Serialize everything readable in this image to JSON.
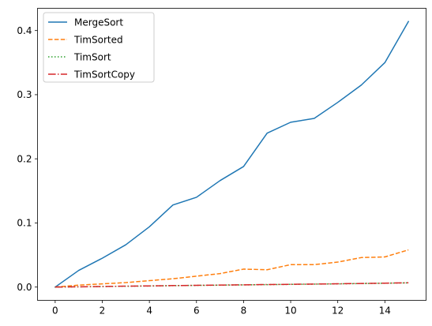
{
  "chart_data": {
    "type": "line",
    "x": [
      0,
      1,
      2,
      3,
      4,
      5,
      6,
      7,
      8,
      9,
      10,
      11,
      12,
      13,
      14,
      15
    ],
    "series": [
      {
        "name": "MergeSort",
        "color": "#1f77b4",
        "dash": "solid",
        "values": [
          0.0,
          0.026,
          0.045,
          0.066,
          0.094,
          0.128,
          0.14,
          0.166,
          0.188,
          0.24,
          0.257,
          0.263,
          0.288,
          0.315,
          0.35,
          0.414
        ]
      },
      {
        "name": "TimSorted",
        "color": "#ff7f0e",
        "dash": "dashed",
        "values": [
          0.0,
          0.003,
          0.005,
          0.007,
          0.01,
          0.013,
          0.017,
          0.021,
          0.028,
          0.027,
          0.035,
          0.035,
          0.039,
          0.046,
          0.047,
          0.058
        ]
      },
      {
        "name": "TimSort",
        "color": "#2ca02c",
        "dash": "dotted",
        "values": [
          0.0,
          0.0004,
          0.0008,
          0.0013,
          0.0017,
          0.0022,
          0.0026,
          0.003,
          0.0034,
          0.0038,
          0.0042,
          0.0046,
          0.005,
          0.0055,
          0.006,
          0.0066
        ]
      },
      {
        "name": "TimSortCopy",
        "color": "#d62728",
        "dash": "dashdot",
        "values": [
          0.0,
          0.0004,
          0.0009,
          0.0014,
          0.0018,
          0.0023,
          0.0027,
          0.0031,
          0.0035,
          0.0039,
          0.0043,
          0.0047,
          0.0051,
          0.0056,
          0.0061,
          0.0067
        ]
      }
    ],
    "xlim": [
      -0.75,
      15.75
    ],
    "ylim": [
      -0.0207,
      0.4347
    ],
    "xticks": [
      0,
      2,
      4,
      6,
      8,
      10,
      12,
      14
    ],
    "xtick_labels": [
      "0",
      "2",
      "4",
      "6",
      "8",
      "10",
      "12",
      "14"
    ],
    "yticks": [
      0.0,
      0.1,
      0.2,
      0.3,
      0.4
    ],
    "ytick_labels": [
      "0.0",
      "0.1",
      "0.2",
      "0.3",
      "0.4"
    ],
    "title": "",
    "xlabel": "",
    "ylabel": "",
    "grid": false,
    "legend_position": "upper-left"
  }
}
